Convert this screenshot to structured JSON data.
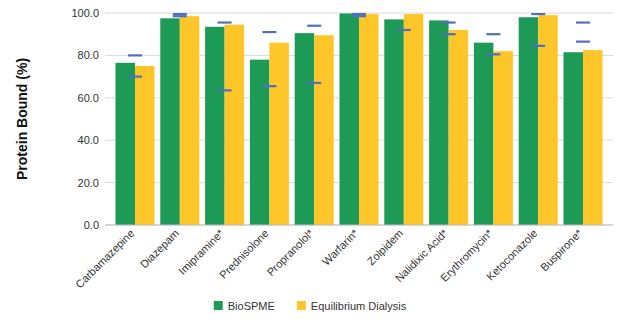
{
  "chart_data": {
    "type": "bar",
    "y_label": "Protein Bound (%)",
    "categories": [
      "Carbamazepine",
      "Diazepam",
      "Imipramine*",
      "Prednisolone",
      "Propranolol*",
      "Warfarin*",
      "Zolpidem",
      "Nalidixic Acid*",
      "Erythromycin*",
      "Ketoconazole",
      "Buspirone*"
    ],
    "series": [
      {
        "name": "BioSPME",
        "color": "#1d9a56",
        "values": [
          76.5,
          97.5,
          93.5,
          78,
          90.5,
          99.8,
          97,
          96.5,
          86,
          98,
          81.5
        ]
      },
      {
        "name": "Equilibrium Dialysis",
        "color": "#fec629",
        "values": [
          75,
          98.5,
          94.5,
          86,
          89.5,
          99.5,
          99.5,
          92,
          82,
          99,
          82.5
        ]
      }
    ],
    "reference_values": [
      [
        80,
        70
      ],
      [
        99.5,
        98.5
      ],
      [
        95.5,
        63.5
      ],
      [
        91,
        65.5
      ],
      [
        94,
        67
      ],
      [
        99.5,
        98.5
      ],
      [
        92
      ],
      [
        95.5,
        90
      ],
      [
        90,
        80.5
      ],
      [
        99.5,
        84.5
      ],
      [
        95.5,
        86.5
      ]
    ],
    "ylim": [
      0,
      100
    ],
    "yticks": [
      {
        "value": 0,
        "label": "0.0"
      },
      {
        "value": 20,
        "label": "20.0"
      },
      {
        "value": 40,
        "label": "40.0"
      },
      {
        "value": 60,
        "label": "60.0"
      },
      {
        "value": 80,
        "label": "80.0"
      },
      {
        "value": 100,
        "label": "100.0"
      }
    ],
    "grid": true,
    "legend": "bottom"
  }
}
